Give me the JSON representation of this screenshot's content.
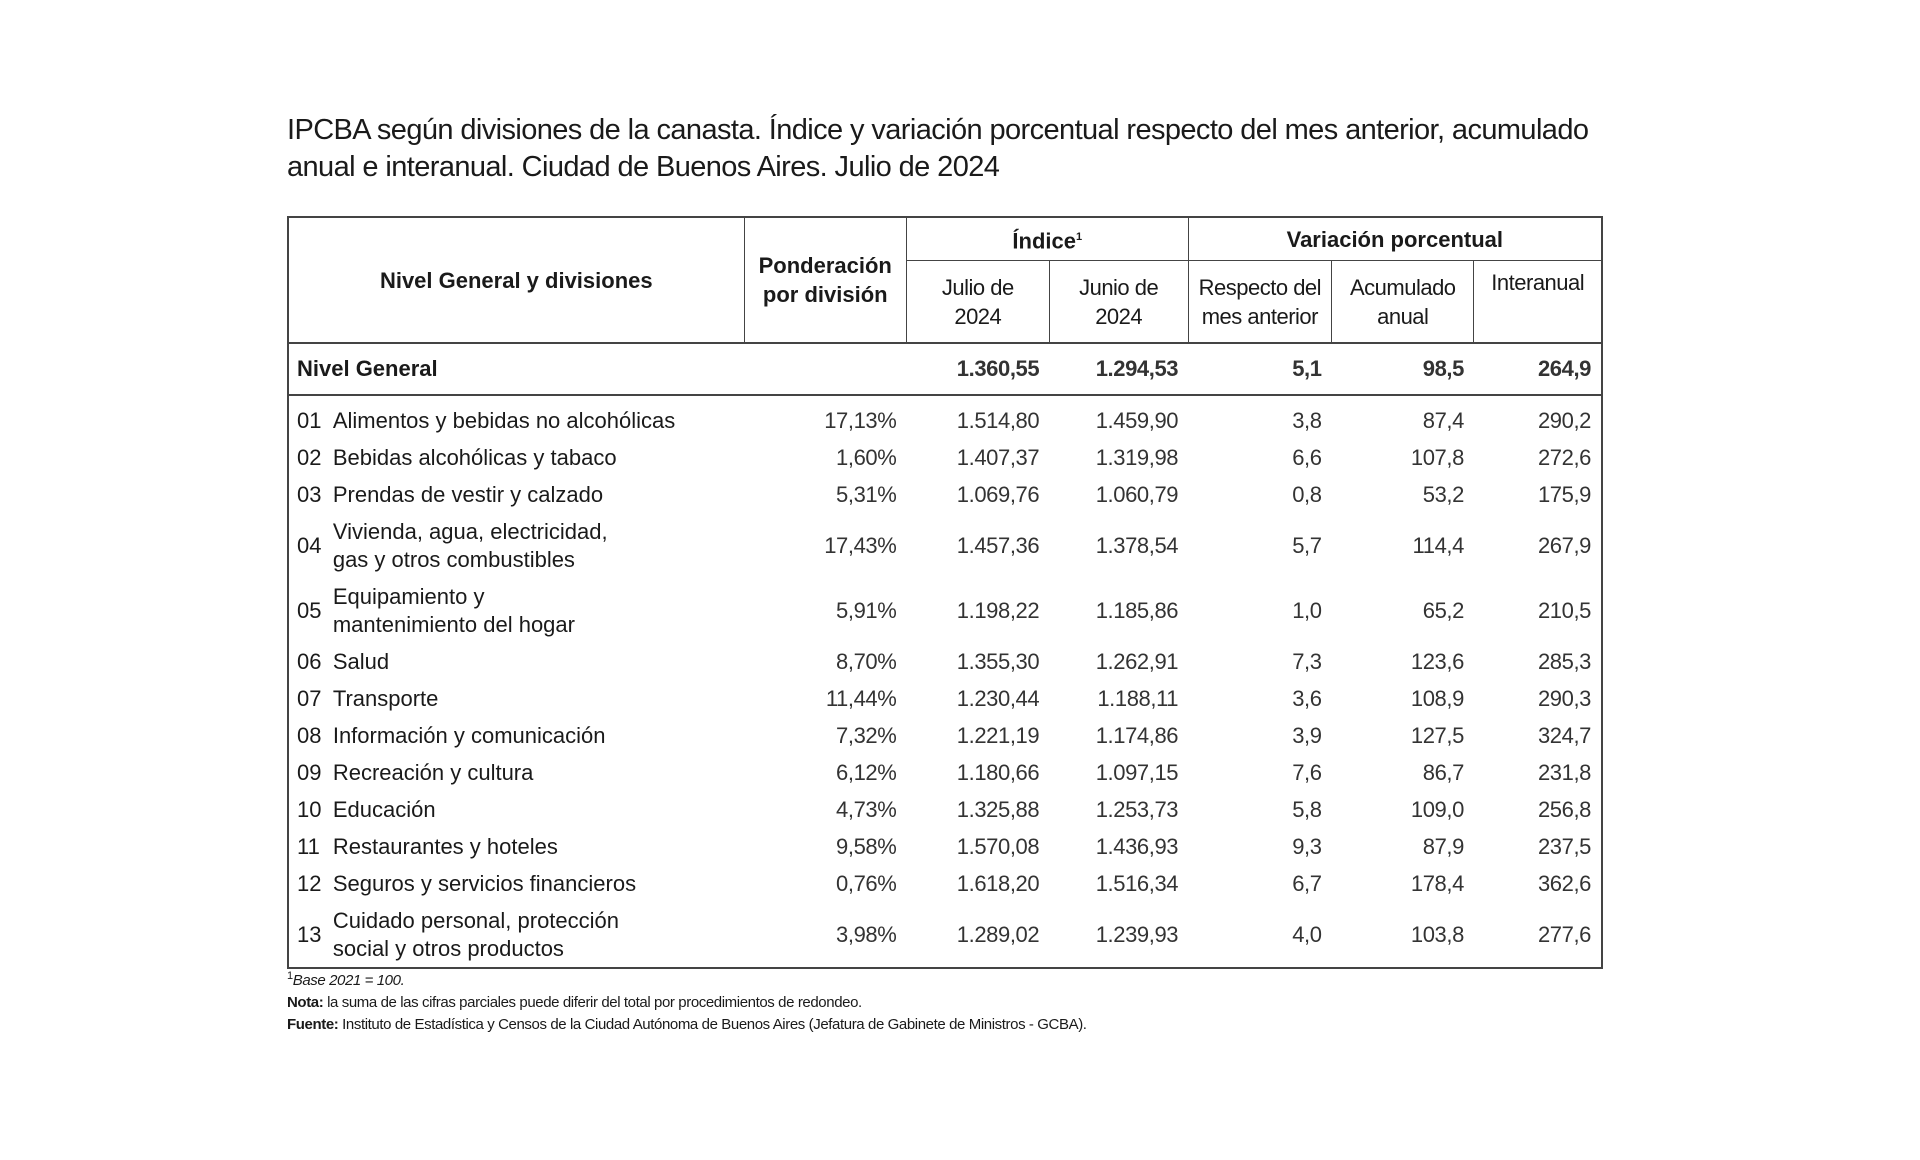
{
  "title": "IPCBA según divisiones de la canasta. Índice y variación porcentual respecto del mes anterior, acumulado anual e interanual. Ciudad de Buenos Aires. Julio de 2024",
  "headers": {
    "division": "Nivel General y divisiones",
    "ponderacion": "Ponderación por división",
    "indice": "Índice",
    "indice_sup": "1",
    "variacion": "Variación porcentual",
    "julio": "Julio de 2024",
    "junio": "Junio de 2024",
    "mes_anterior": "Respecto del mes anterior",
    "acumulado": "Acumulado anual",
    "interanual": "Interanual"
  },
  "general": {
    "name": "Nivel General",
    "julio": "1.360,55",
    "junio": "1.294,53",
    "mes": "5,1",
    "acum": "98,5",
    "inter": "264,9"
  },
  "rows": [
    {
      "code": "01",
      "name": "Alimentos y bebidas no alcohólicas",
      "pond": "17,13%",
      "julio": "1.514,80",
      "junio": "1.459,90",
      "mes": "3,8",
      "acum": "87,4",
      "inter": "290,2"
    },
    {
      "code": "02",
      "name": "Bebidas alcohólicas y tabaco",
      "pond": "1,60%",
      "julio": "1.407,37",
      "junio": "1.319,98",
      "mes": "6,6",
      "acum": "107,8",
      "inter": "272,6"
    },
    {
      "code": "03",
      "name": "Prendas de vestir y calzado",
      "pond": "5,31%",
      "julio": "1.069,76",
      "junio": "1.060,79",
      "mes": "0,8",
      "acum": "53,2",
      "inter": "175,9"
    },
    {
      "code": "04",
      "name": "Vivienda, agua, electricidad,",
      "name2": "gas y otros combustibles",
      "pond": "17,43%",
      "julio": "1.457,36",
      "junio": "1.378,54",
      "mes": "5,7",
      "acum": "114,4",
      "inter": "267,9"
    },
    {
      "code": "05",
      "name": "Equipamiento y",
      "name2": "mantenimiento del hogar",
      "pond": "5,91%",
      "julio": "1.198,22",
      "junio": "1.185,86",
      "mes": "1,0",
      "acum": "65,2",
      "inter": "210,5"
    },
    {
      "code": "06",
      "name": "Salud",
      "pond": "8,70%",
      "julio": "1.355,30",
      "junio": "1.262,91",
      "mes": "7,3",
      "acum": "123,6",
      "inter": "285,3"
    },
    {
      "code": "07",
      "name": "Transporte",
      "pond": "11,44%",
      "julio": "1.230,44",
      "junio": "1.188,11",
      "mes": "3,6",
      "acum": "108,9",
      "inter": "290,3"
    },
    {
      "code": "08",
      "name": "Información y comunicación",
      "pond": "7,32%",
      "julio": "1.221,19",
      "junio": "1.174,86",
      "mes": "3,9",
      "acum": "127,5",
      "inter": "324,7"
    },
    {
      "code": "09",
      "name": "Recreación y cultura",
      "pond": "6,12%",
      "julio": "1.180,66",
      "junio": "1.097,15",
      "mes": "7,6",
      "acum": "86,7",
      "inter": "231,8"
    },
    {
      "code": "10",
      "name": "Educación",
      "pond": "4,73%",
      "julio": "1.325,88",
      "junio": "1.253,73",
      "mes": "5,8",
      "acum": "109,0",
      "inter": "256,8"
    },
    {
      "code": "11",
      "name": "Restaurantes y hoteles",
      "pond": "9,58%",
      "julio": "1.570,08",
      "junio": "1.436,93",
      "mes": "9,3",
      "acum": "87,9",
      "inter": "237,5"
    },
    {
      "code": "12",
      "name": "Seguros y servicios financieros",
      "pond": "0,76%",
      "julio": "1.618,20",
      "junio": "1.516,34",
      "mes": "6,7",
      "acum": "178,4",
      "inter": "362,6"
    },
    {
      "code": "13",
      "name": "Cuidado personal, protección",
      "name2": "social y otros productos",
      "pond": "3,98%",
      "julio": "1.289,02",
      "junio": "1.239,93",
      "mes": "4,0",
      "acum": "103,8",
      "inter": "277,6"
    }
  ],
  "notes": {
    "base_sup": "1",
    "base": "Base 2021 = 100.",
    "nota_label": "Nota:",
    "nota": " la suma de las cifras parciales puede diferir del total por procedimientos de redondeo.",
    "fuente_label": "Fuente:",
    "fuente": " Instituto de Estadística y Censos de la Ciudad Autónoma de Buenos Aires (Jefatura de Gabinete de Ministros - GCBA)."
  }
}
